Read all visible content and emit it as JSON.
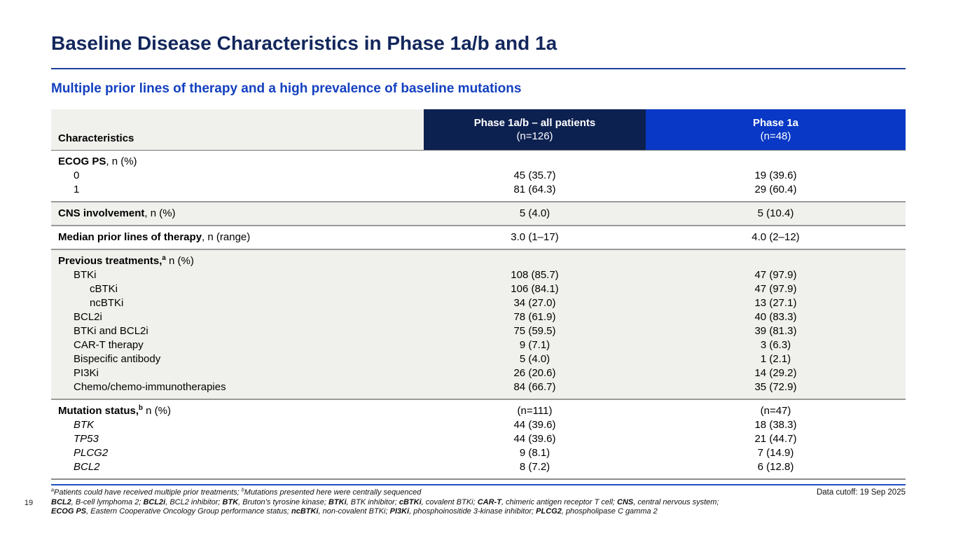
{
  "slide": {
    "title": "Baseline Disease Characteristics in Phase 1a/b and 1a",
    "subtitle": "Multiple prior lines of therapy and a high prevalence of baseline mutations",
    "page_number": "19",
    "data_cutoff": "Data cutoff: 19 Sep 2025"
  },
  "colors": {
    "title_navy": "#13275c",
    "subtitle_blue": "#1340bf",
    "header_navy": "#0d2151",
    "header_blue": "#0838c5",
    "row_shade_gray": "#f0f0ec",
    "divider_blue": "#1e4397"
  },
  "table": {
    "columns": [
      {
        "label": "Characteristics"
      },
      {
        "label": "Phase 1a/b – all patients",
        "sublabel": "(n=126)"
      },
      {
        "label": "Phase 1a",
        "sublabel": "(n=48)"
      }
    ],
    "groups": [
      {
        "shaded": false,
        "rows": [
          {
            "label": {
              "bold": "ECOG PS",
              "rest": ", n (%)"
            },
            "indent": 0,
            "v1": "",
            "v2": ""
          },
          {
            "label": {
              "text": "0"
            },
            "indent": 1,
            "v1": "45 (35.7)",
            "v2": "19 (39.6)"
          },
          {
            "label": {
              "text": "1"
            },
            "indent": 1,
            "v1": "81 (64.3)",
            "v2": "29 (60.4)"
          }
        ]
      },
      {
        "shaded": true,
        "rows": [
          {
            "label": {
              "bold": "CNS involvement",
              "rest": ", n (%)"
            },
            "indent": 0,
            "v1": "5 (4.0)",
            "v2": "5 (10.4)"
          }
        ]
      },
      {
        "shaded": false,
        "rows": [
          {
            "label": {
              "bold": "Median prior lines of therapy",
              "rest": ", n (range)"
            },
            "indent": 0,
            "v1": "3.0 (1–17)",
            "v2": "4.0 (2–12)"
          }
        ]
      },
      {
        "shaded": true,
        "rows": [
          {
            "label": {
              "bold": "Previous treatments,",
              "sup": "a",
              "rest": " n (%)"
            },
            "indent": 0,
            "v1": "",
            "v2": ""
          },
          {
            "label": {
              "text": "BTKi"
            },
            "indent": 1,
            "v1": "108 (85.7)",
            "v2": "47 (97.9)"
          },
          {
            "label": {
              "text": "cBTKi"
            },
            "indent": 2,
            "v1": "106 (84.1)",
            "v2": "47 (97.9)"
          },
          {
            "label": {
              "text": "ncBTKi"
            },
            "indent": 2,
            "v1": "34 (27.0)",
            "v2": "13 (27.1)"
          },
          {
            "label": {
              "text": "BCL2i"
            },
            "indent": 1,
            "v1": "78 (61.9)",
            "v2": "40 (83.3)"
          },
          {
            "label": {
              "text": "BTKi and BCL2i"
            },
            "indent": 1,
            "v1": "75 (59.5)",
            "v2": "39 (81.3)"
          },
          {
            "label": {
              "text": "CAR-T therapy"
            },
            "indent": 1,
            "v1": "9 (7.1)",
            "v2": "3 (6.3)"
          },
          {
            "label": {
              "text": "Bispecific antibody"
            },
            "indent": 1,
            "v1": "5 (4.0)",
            "v2": "1 (2.1)"
          },
          {
            "label": {
              "text": "PI3Ki"
            },
            "indent": 1,
            "v1": "26 (20.6)",
            "v2": "14 (29.2)"
          },
          {
            "label": {
              "text": "Chemo/chemo-immunotherapies"
            },
            "indent": 1,
            "v1": "84 (66.7)",
            "v2": "35 (72.9)"
          }
        ]
      },
      {
        "shaded": false,
        "rows": [
          {
            "label": {
              "bold": "Mutation status,",
              "sup": "b",
              "rest": " n (%)"
            },
            "indent": 0,
            "v1": "(n=111)",
            "v2": "(n=47)"
          },
          {
            "label": {
              "text": "BTK",
              "italic": true
            },
            "indent": 1,
            "v1": "44 (39.6)",
            "v2": "18 (38.3)"
          },
          {
            "label": {
              "text": "TP53",
              "italic": true
            },
            "indent": 1,
            "v1": "44 (39.6)",
            "v2": "21 (44.7)"
          },
          {
            "label": {
              "text": "PLCG2",
              "italic": true
            },
            "indent": 1,
            "v1": "9 (8.1)",
            "v2": "7 (14.9)"
          },
          {
            "label": {
              "text": "BCL2",
              "italic": true
            },
            "indent": 1,
            "v1": "8 (7.2)",
            "v2": "6 (12.8)"
          }
        ]
      }
    ]
  },
  "footnotes": {
    "lines": [
      [
        {
          "sup": "a"
        },
        {
          "text": "Patients could have received multiple prior treatments; "
        },
        {
          "sup": "b"
        },
        {
          "text": "Mutations presented here were centrally sequenced"
        }
      ],
      [
        {
          "bold": "BCL2"
        },
        {
          "text": ", B-cell lymphoma 2; "
        },
        {
          "bold": "BCL2i"
        },
        {
          "text": ", BCL2 inhibitor; "
        },
        {
          "bold": "BTK"
        },
        {
          "text": ", Bruton’s tyrosine kinase; "
        },
        {
          "bold": "BTKi"
        },
        {
          "text": ", BTK inhibitor; "
        },
        {
          "bold": "cBTKi"
        },
        {
          "text": ", covalent BTKi; "
        },
        {
          "bold": "CAR-T"
        },
        {
          "text": ", chimeric antigen receptor T cell; "
        },
        {
          "bold": "CNS"
        },
        {
          "text": ", central nervous system;"
        }
      ],
      [
        {
          "bold": "ECOG PS"
        },
        {
          "text": ", Eastern Cooperative Oncology Group performance status; "
        },
        {
          "bold": "ncBTKi"
        },
        {
          "text": ", non-covalent BTKi; "
        },
        {
          "bold": "PI3Ki"
        },
        {
          "text": ", phosphoinositide 3-kinase inhibitor; "
        },
        {
          "bold": "PLCG2"
        },
        {
          "text": ", phospholipase C gamma 2"
        }
      ]
    ]
  }
}
